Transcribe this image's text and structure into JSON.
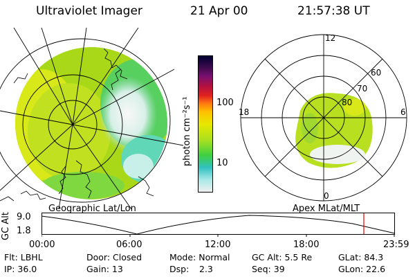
{
  "header": {
    "title": "Ultraviolet Imager",
    "date": "21 Apr 00",
    "time": "21:57:38 UT"
  },
  "colorbar": {
    "label": "photon cm⁻²s⁻¹",
    "ticks": [
      "100",
      "10"
    ],
    "colors": [
      "#000033",
      "#3a0a4a",
      "#7a1070",
      "#b01040",
      "#e02020",
      "#ff7a10",
      "#ffc000",
      "#e8e800",
      "#a8e020",
      "#40d040",
      "#30c0c0",
      "#a8e8e8",
      "#f0f0f0"
    ]
  },
  "polar": {
    "mlt_labels": [
      "12",
      "18",
      "6",
      "0"
    ],
    "lat_labels": [
      "60",
      "70",
      "80"
    ]
  },
  "panel_labels": {
    "left": "Geographic Lat/Lon",
    "right": "Apex MLat/MLT"
  },
  "orbit": {
    "ylabel": "GC Alt",
    "yticks": [
      "9.0",
      "1.8"
    ],
    "xticks": [
      "00:00",
      "06:00",
      "12:00",
      "18:00",
      "23:59"
    ],
    "marker_color": "#e00000"
  },
  "status": {
    "row1": {
      "filter": "Flt: LBHL",
      "door": "Door: Closed",
      "mode": "Mode: Normal",
      "gc_alt": "GC Alt: 5.5 Re",
      "glat": "GLat: 84.3"
    },
    "row2": {
      "ip": "IP: 36.0",
      "gain": "Gain: 13",
      "dsp_label": "Dsp:",
      "dsp_value": "2.3",
      "seq": "Seq: 39",
      "glon": "GLon: 22.6"
    }
  }
}
